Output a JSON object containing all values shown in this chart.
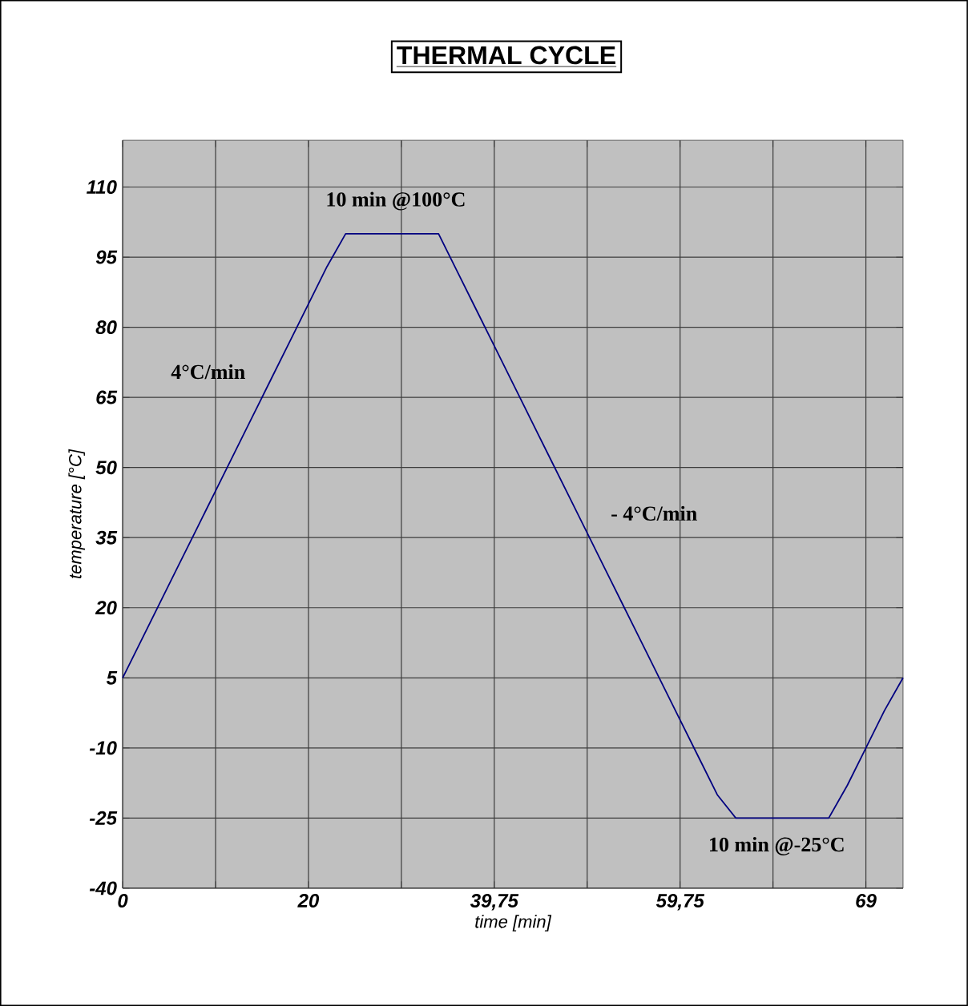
{
  "chart_data": {
    "type": "line",
    "title": "THERMAL CYCLE",
    "xlabel": "time [min]",
    "ylabel": "temperature [°C]",
    "categories": [
      "0",
      null,
      null,
      null,
      null,
      null,
      null,
      null,
      null,
      null,
      "20",
      null,
      null,
      null,
      null,
      null,
      null,
      null,
      null,
      null,
      "39,75",
      null,
      null,
      null,
      null,
      null,
      null,
      null,
      null,
      null,
      "59,75",
      null,
      null,
      null,
      null,
      null,
      null,
      null,
      null,
      null,
      "69",
      null,
      null
    ],
    "values": [
      5,
      13,
      21,
      29,
      37,
      45,
      53,
      61,
      69,
      77,
      85,
      93,
      100,
      100,
      100,
      100,
      100,
      100,
      92,
      84,
      76,
      68,
      60,
      52,
      44,
      36,
      28,
      20,
      12,
      4,
      -4,
      -12,
      -20,
      -25,
      -25,
      -25,
      -25,
      -25,
      -25,
      -18,
      -10,
      -2,
      5
    ],
    "color": "#000080",
    "ylim": [
      -40,
      120
    ],
    "yticks": [
      -40,
      -25,
      -10,
      5,
      20,
      35,
      50,
      65,
      80,
      95,
      110
    ],
    "grid": true,
    "marker": "none",
    "line_style": "solid",
    "annotations": [
      "10 min @100°C",
      "4°C/min",
      "- 4°C/min",
      "10 min @-25°C"
    ]
  }
}
